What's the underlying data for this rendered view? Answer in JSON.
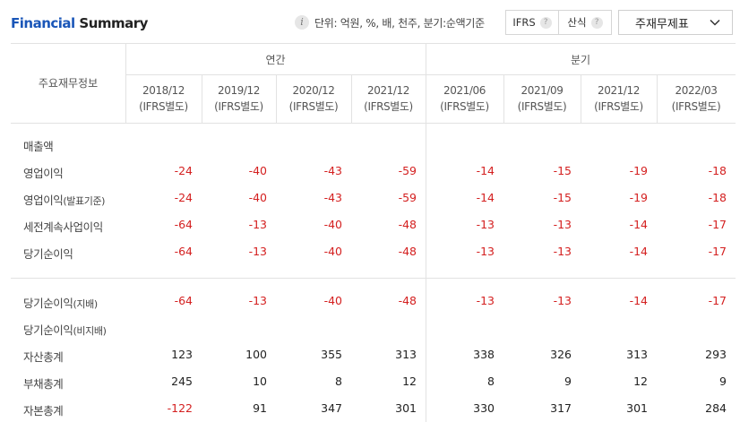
{
  "header": {
    "title_part1": "Financial",
    "title_part2": "Summary",
    "unit_text": "단위: 억원, %, 배, 천주, 분기:순액기준",
    "toggle": {
      "opt1": "IFRS",
      "opt2": "산식"
    },
    "select_value": "주재무제표"
  },
  "table": {
    "corner_label": "주요재무정보",
    "annual_label": "연간",
    "quarter_label": "분기",
    "periods": [
      {
        "date": "2018/12",
        "sub": "(IFRS별도)"
      },
      {
        "date": "2019/12",
        "sub": "(IFRS별도)"
      },
      {
        "date": "2020/12",
        "sub": "(IFRS별도)"
      },
      {
        "date": "2021/12",
        "sub": "(IFRS별도)"
      },
      {
        "date": "2021/06",
        "sub": "(IFRS별도)"
      },
      {
        "date": "2021/09",
        "sub": "(IFRS별도)"
      },
      {
        "date": "2021/12",
        "sub": "(IFRS별도)"
      },
      {
        "date": "2022/03",
        "sub": "(IFRS별도)"
      }
    ],
    "rows": [
      {
        "label": "매출액",
        "values": [
          "",
          "",
          "",
          "",
          "",
          "",
          "",
          ""
        ]
      },
      {
        "label": "영업이익",
        "values": [
          "-24",
          "-40",
          "-43",
          "-59",
          "-14",
          "-15",
          "-19",
          "-18"
        ]
      },
      {
        "label": "영업이익",
        "label_small": "(발표기준)",
        "values": [
          "-24",
          "-40",
          "-43",
          "-59",
          "-14",
          "-15",
          "-19",
          "-18"
        ]
      },
      {
        "label": "세전계속사업이익",
        "values": [
          "-64",
          "-13",
          "-40",
          "-48",
          "-13",
          "-13",
          "-14",
          "-17"
        ]
      },
      {
        "label": "당기순이익",
        "values": [
          "-64",
          "-13",
          "-40",
          "-48",
          "-13",
          "-13",
          "-14",
          "-17"
        ]
      },
      {
        "label": "당기순이익",
        "label_small": "(지배)",
        "values": [
          "-64",
          "-13",
          "-40",
          "-48",
          "-13",
          "-13",
          "-14",
          "-17"
        ]
      },
      {
        "label": "당기순이익",
        "label_small": "(비지배)",
        "values": [
          "",
          "",
          "",
          "",
          "",
          "",
          "",
          ""
        ]
      },
      {
        "label": "자산총계",
        "values": [
          "123",
          "100",
          "355",
          "313",
          "338",
          "326",
          "313",
          "293"
        ]
      },
      {
        "label": "부채총계",
        "values": [
          "245",
          "10",
          "8",
          "12",
          "8",
          "9",
          "12",
          "9"
        ]
      },
      {
        "label": "자본총계",
        "values": [
          "-122",
          "91",
          "347",
          "301",
          "330",
          "317",
          "301",
          "284"
        ]
      }
    ]
  },
  "colors": {
    "title_blue": "#1a56b8",
    "negative": "#d42020",
    "border": "#e2e2e2"
  }
}
